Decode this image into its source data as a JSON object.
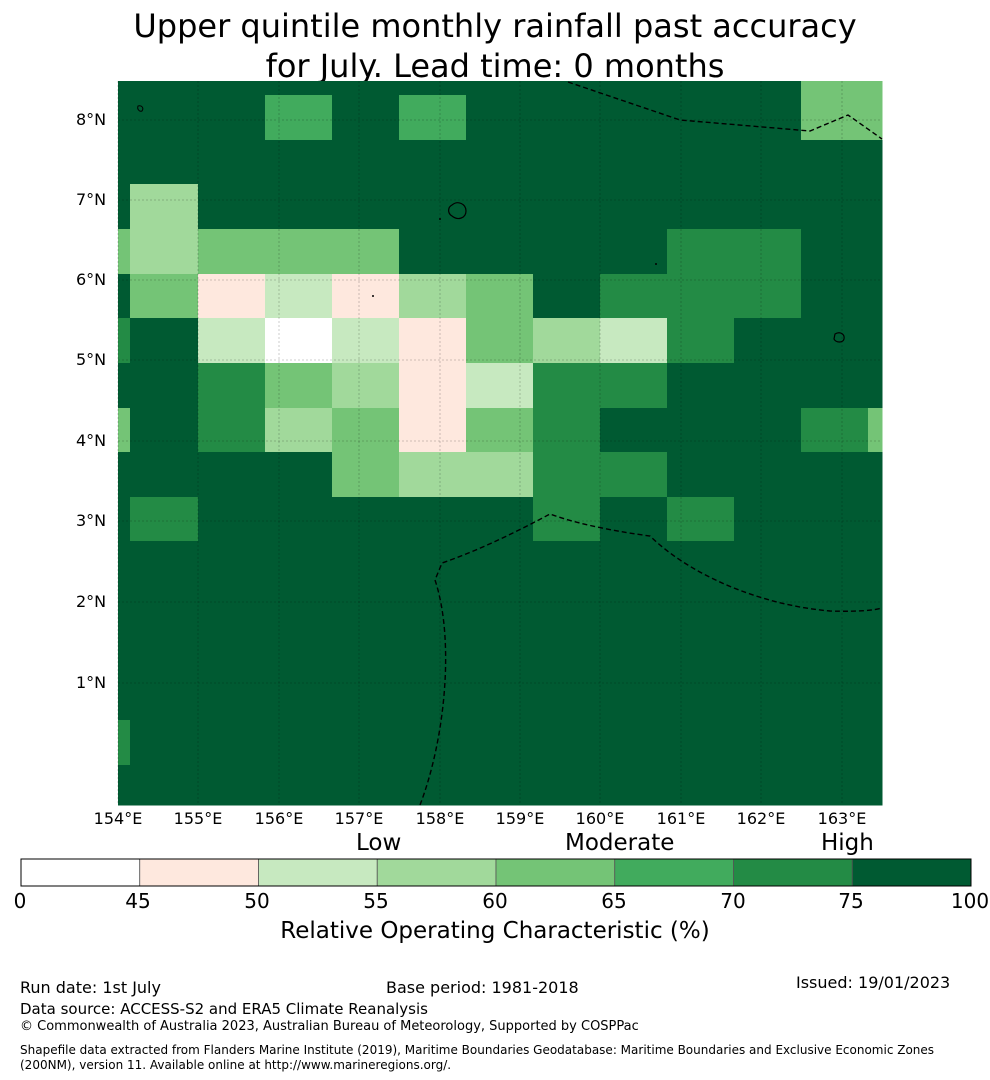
{
  "title_line1": "Upper quintile monthly rainfall past accuracy",
  "title_line2": "for July. Lead time: 0 months",
  "map": {
    "lon_labels": [
      "154°E",
      "155°E",
      "156°E",
      "157°E",
      "158°E",
      "159°E",
      "160°E",
      "161°E",
      "162°E",
      "163°E"
    ],
    "lat_labels": [
      "8°N",
      "7°N",
      "6°N",
      "5°N",
      "4°N",
      "3°N",
      "2°N",
      "1°N"
    ],
    "lon_range": [
      154,
      163.5
    ],
    "lat_range": [
      0,
      8.5
    ],
    "grid_note_cols": "columns: 154.0-154.15, 154.15-155, 155-155.83, 155.83-156.67, 156.67-157.5, 157.5-158.33, 158.33-159.17, 159.17-160, 160-160.83, 160.83-161.67, 161.67-162.5, 162.5-163.33, 163.33-163.5",
    "roc_rows_top_to_bottom": [
      [
        80,
        80,
        80,
        65,
        75,
        65,
        75,
        75,
        80,
        80,
        75,
        60,
        60
      ],
      [
        80,
        80,
        80,
        80,
        80,
        80,
        80,
        75,
        75,
        80,
        80,
        80,
        80
      ],
      [
        80,
        55,
        75,
        80,
        80,
        80,
        80,
        80,
        80,
        75,
        75,
        80,
        80
      ],
      [
        60,
        55,
        60,
        60,
        60,
        80,
        75,
        80,
        80,
        70,
        70,
        75,
        80
      ],
      [
        75,
        60,
        48,
        52,
        48,
        55,
        60,
        75,
        70,
        70,
        70,
        80,
        80
      ],
      [
        70,
        75,
        52,
        40,
        52,
        48,
        60,
        55,
        52,
        70,
        75,
        75,
        80
      ],
      [
        75,
        75,
        70,
        60,
        55,
        48,
        52,
        70,
        70,
        75,
        80,
        80,
        75
      ],
      [
        60,
        75,
        70,
        55,
        60,
        48,
        60,
        70,
        75,
        75,
        80,
        70,
        60
      ],
      [
        75,
        80,
        80,
        80,
        60,
        55,
        55,
        70,
        70,
        75,
        75,
        80,
        80
      ],
      [
        75,
        70,
        80,
        75,
        75,
        75,
        80,
        70,
        75,
        70,
        80,
        80,
        80
      ],
      [
        80,
        80,
        80,
        80,
        80,
        80,
        75,
        80,
        80,
        80,
        80,
        80,
        80
      ],
      [
        80,
        80,
        80,
        80,
        80,
        80,
        80,
        80,
        80,
        80,
        80,
        80,
        80
      ],
      [
        75,
        80,
        80,
        80,
        80,
        80,
        80,
        80,
        80,
        80,
        80,
        80,
        80
      ],
      [
        80,
        80,
        80,
        80,
        80,
        80,
        80,
        80,
        80,
        80,
        80,
        80,
        80
      ],
      [
        70,
        80,
        80,
        80,
        80,
        80,
        80,
        80,
        80,
        80,
        80,
        80,
        80
      ],
      [
        80,
        80,
        80,
        80,
        80,
        80,
        80,
        80,
        80,
        80,
        80,
        80,
        80
      ]
    ]
  },
  "colorbar": {
    "tier_labels": [
      "Low",
      "Moderate",
      "High"
    ],
    "bins": [
      {
        "from": 0,
        "to": 45,
        "color": "#ffffff"
      },
      {
        "from": 45,
        "to": 50,
        "color": "#fee8de"
      },
      {
        "from": 50,
        "to": 55,
        "color": "#c7e9c0"
      },
      {
        "from": 55,
        "to": 60,
        "color": "#a1d99b"
      },
      {
        "from": 60,
        "to": 65,
        "color": "#74c476"
      },
      {
        "from": 65,
        "to": 70,
        "color": "#41ab5d"
      },
      {
        "from": 70,
        "to": 75,
        "color": "#238b45"
      },
      {
        "from": 75,
        "to": 100,
        "color": "#005a32"
      }
    ],
    "ticks": [
      "0",
      "45",
      "50",
      "55",
      "60",
      "65",
      "70",
      "75",
      "100"
    ],
    "label": "Relative Operating Characteristic (%)"
  },
  "footer": {
    "run_date": "Run date: 1st July",
    "base_period": "Base period: 1981-2018",
    "issued": "Issued: 19/01/2023",
    "data_source": "Data source: ACCESS-S2 and ERA5 Climate Reanalysis",
    "copyright": "© Commonwealth of Australia 2023, Australian Bureau of Meteorology, Supported by COSPPac",
    "shapefile": "Shapefile data extracted from Flanders Marine Institute (2019), Maritime Boundaries Geodatabase: Maritime Boundaries and Exclusive Economic Zones (200NM), version 11. Available online at http://www.marineregions.org/."
  }
}
